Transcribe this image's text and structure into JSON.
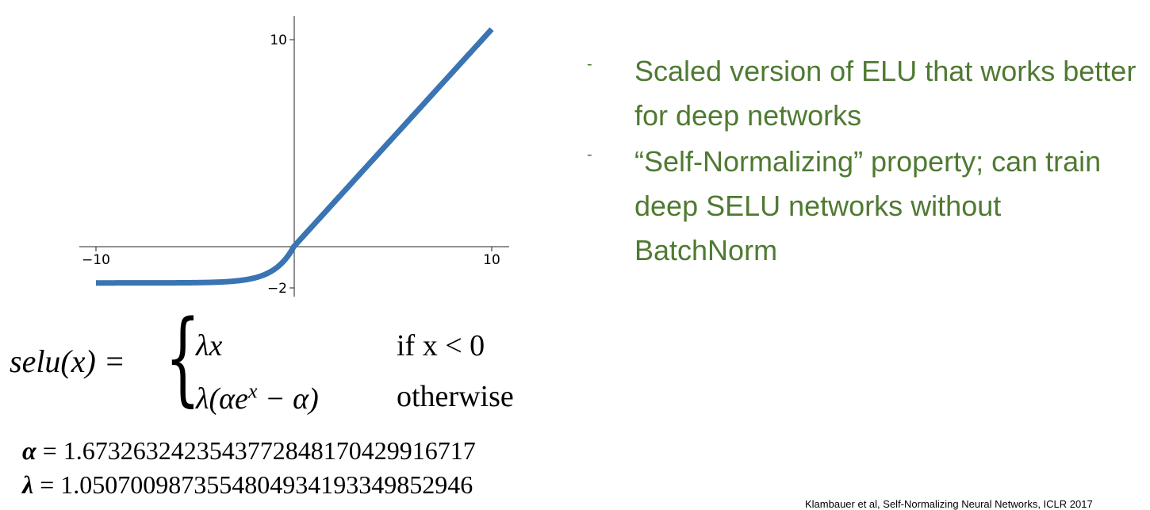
{
  "chart_data": {
    "type": "line",
    "function": "selu",
    "x_range": [
      -10,
      10
    ],
    "xlim": [
      -10,
      10
    ],
    "ylim": [
      -2,
      10
    ],
    "xticks": [
      -10,
      10
    ],
    "yticks": [
      10,
      -2
    ],
    "xtick_labels": [
      "−10",
      "10"
    ],
    "ytick_labels": [
      "10",
      "−2"
    ],
    "alpha": 1.6732632423543772,
    "lambda": 1.0507009873554805,
    "line_color": "#3a74b3",
    "grid": false,
    "title": "",
    "xlabel": "",
    "ylabel": ""
  },
  "formula": {
    "lhs": "selu(x) =",
    "case1_expr": "λx",
    "case1_cond": "if x < 0",
    "case2_expr": "λ(αe",
    "case2_sup": "x",
    "case2_tail": " − α)",
    "case2_cond": "otherwise"
  },
  "constants": {
    "alpha_symbol": "α",
    "alpha_value": " = 1.6732632423543772848170429916717",
    "lambda_symbol": "λ",
    "lambda_value": " = 1.0507009873554804934193349852946"
  },
  "bullets": [
    {
      "dash": "-",
      "text": "Scaled version of ELU that works better for deep networks"
    },
    {
      "dash": "-",
      "text": "“Self-Normalizing” property; can train deep SELU networks without BatchNorm"
    }
  ],
  "accent_color": "#4f7a32",
  "citation": "Klambauer et al, Self-Normalizing Neural Networks, ICLR 2017"
}
